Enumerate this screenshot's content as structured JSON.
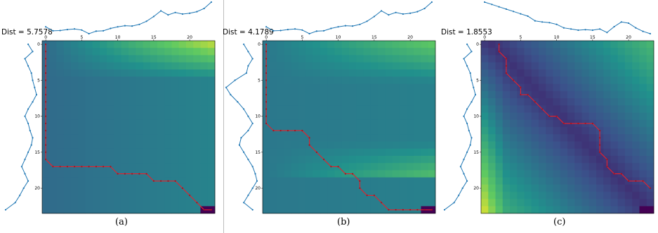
{
  "chart_data": [
    {
      "type": "heatmap",
      "caption": "(a)",
      "dist_label": "Dist = 5.7578",
      "grid_size": 24,
      "x_ticks": [
        0,
        5,
        10,
        15,
        20
      ],
      "y_ticks": [
        0,
        5,
        10,
        15,
        20
      ],
      "colormap": [
        "#440154",
        "#3b528b",
        "#21918c",
        "#5ec962",
        "#fde725"
      ],
      "grid": false,
      "path": [
        [
          0,
          0
        ],
        [
          0,
          1
        ],
        [
          0,
          2
        ],
        [
          0,
          3
        ],
        [
          0,
          4
        ],
        [
          0,
          5
        ],
        [
          0,
          6
        ],
        [
          0,
          7
        ],
        [
          0,
          8
        ],
        [
          0,
          9
        ],
        [
          0,
          10
        ],
        [
          0,
          11
        ],
        [
          0,
          12
        ],
        [
          0,
          13
        ],
        [
          0,
          14
        ],
        [
          0,
          15
        ],
        [
          0,
          16
        ],
        [
          1,
          17
        ],
        [
          2,
          17
        ],
        [
          3,
          17
        ],
        [
          4,
          17
        ],
        [
          5,
          17
        ],
        [
          6,
          17
        ],
        [
          7,
          17
        ],
        [
          8,
          17
        ],
        [
          9,
          17
        ],
        [
          10,
          18
        ],
        [
          11,
          18
        ],
        [
          12,
          18
        ],
        [
          13,
          18
        ],
        [
          14,
          18
        ],
        [
          15,
          19
        ],
        [
          16,
          19
        ],
        [
          17,
          19
        ],
        [
          18,
          19
        ],
        [
          19,
          20
        ],
        [
          20,
          21
        ],
        [
          21,
          22
        ],
        [
          22,
          23
        ],
        [
          23,
          23
        ]
      ],
      "top_series": [
        0.55,
        0.3,
        0.32,
        0.38,
        0.42,
        0.35,
        0.12,
        0.28,
        0.3,
        0.45,
        0.55,
        0.62,
        0.6,
        0.7,
        0.9,
        1.2,
        1.55,
        1.3,
        1.45,
        1.35,
        1.4,
        1.5,
        1.7,
        2.1
      ],
      "left_series": [
        0.55,
        0.62,
        0.5,
        0.55,
        0.6,
        0.62,
        0.65,
        0.68,
        0.62,
        0.55,
        0.5,
        0.55,
        0.58,
        0.62,
        0.6,
        0.55,
        0.5,
        0.45,
        0.5,
        0.55,
        0.48,
        0.42,
        0.35,
        0.2
      ]
    },
    {
      "type": "heatmap",
      "caption": "(b)",
      "dist_label": "Dist = 4.1789",
      "grid_size": 24,
      "x_ticks": [
        0,
        5,
        10,
        15,
        20
      ],
      "y_ticks": [
        0,
        5,
        10,
        15,
        20
      ],
      "colormap": [
        "#440154",
        "#3b528b",
        "#21918c",
        "#5ec962",
        "#fde725"
      ],
      "grid": false,
      "path": [
        [
          0,
          0
        ],
        [
          0,
          1
        ],
        [
          0,
          2
        ],
        [
          0,
          3
        ],
        [
          0,
          4
        ],
        [
          0,
          5
        ],
        [
          0,
          6
        ],
        [
          0,
          7
        ],
        [
          0,
          8
        ],
        [
          0,
          9
        ],
        [
          0,
          10
        ],
        [
          0,
          11
        ],
        [
          1,
          12
        ],
        [
          2,
          12
        ],
        [
          3,
          12
        ],
        [
          4,
          12
        ],
        [
          5,
          12
        ],
        [
          6,
          13
        ],
        [
          6,
          14
        ],
        [
          7,
          15
        ],
        [
          8,
          16
        ],
        [
          9,
          17
        ],
        [
          10,
          17
        ],
        [
          11,
          18
        ],
        [
          12,
          18
        ],
        [
          13,
          19
        ],
        [
          13,
          20
        ],
        [
          14,
          21
        ],
        [
          15,
          21
        ],
        [
          16,
          22
        ],
        [
          17,
          23
        ],
        [
          18,
          23
        ],
        [
          19,
          23
        ],
        [
          20,
          23
        ],
        [
          21,
          23
        ],
        [
          22,
          23
        ],
        [
          23,
          23
        ]
      ],
      "top_series": [
        0.55,
        0.3,
        0.32,
        0.38,
        0.42,
        0.35,
        0.12,
        0.28,
        0.3,
        0.45,
        0.55,
        0.62,
        0.6,
        0.7,
        0.9,
        1.2,
        1.55,
        1.3,
        1.45,
        1.35,
        1.4,
        1.5,
        1.7,
        2.1
      ],
      "left_series": [
        0.45,
        0.5,
        0.55,
        0.5,
        0.48,
        0.35,
        0.25,
        0.3,
        0.38,
        0.45,
        0.5,
        0.55,
        0.5,
        0.42,
        0.4,
        0.45,
        0.5,
        0.55,
        0.58,
        0.6,
        0.55,
        0.5,
        0.45,
        0.55
      ]
    },
    {
      "type": "heatmap",
      "caption": "(c)",
      "dist_label": "Dist = 1.8553",
      "grid_size": 24,
      "x_ticks": [
        0,
        5,
        10,
        15,
        20
      ],
      "y_ticks": [
        0,
        5,
        10,
        15,
        20
      ],
      "colormap": [
        "#440154",
        "#3b528b",
        "#21918c",
        "#5ec962",
        "#fde725"
      ],
      "grid": false,
      "path": [
        [
          2,
          0
        ],
        [
          2,
          1
        ],
        [
          3,
          2
        ],
        [
          3,
          3
        ],
        [
          3,
          4
        ],
        [
          4,
          5
        ],
        [
          5,
          6
        ],
        [
          5,
          7
        ],
        [
          6,
          7
        ],
        [
          7,
          8
        ],
        [
          8,
          9
        ],
        [
          9,
          10
        ],
        [
          10,
          10
        ],
        [
          11,
          11
        ],
        [
          12,
          11
        ],
        [
          13,
          11
        ],
        [
          14,
          11
        ],
        [
          15,
          11
        ],
        [
          16,
          12
        ],
        [
          16,
          13
        ],
        [
          16,
          14
        ],
        [
          16,
          15
        ],
        [
          17,
          16
        ],
        [
          17,
          17
        ],
        [
          18,
          18
        ],
        [
          19,
          18
        ],
        [
          20,
          19
        ],
        [
          21,
          19
        ],
        [
          22,
          19
        ],
        [
          23,
          20
        ]
      ],
      "top_series": [
        1.6,
        1.5,
        1.4,
        1.3,
        1.2,
        1.1,
        1.0,
        0.8,
        0.75,
        0.72,
        0.65,
        0.5,
        0.45,
        0.4,
        0.42,
        0.4,
        0.45,
        0.3,
        0.55,
        0.75,
        0.7,
        0.5,
        0.35,
        0.25
      ],
      "left_series": [
        0.55,
        0.62,
        0.5,
        0.55,
        0.6,
        0.62,
        0.65,
        0.68,
        0.62,
        0.55,
        0.5,
        0.55,
        0.58,
        0.62,
        0.6,
        0.55,
        0.5,
        0.45,
        0.5,
        0.55,
        0.48,
        0.42,
        0.35,
        0.2
      ]
    }
  ]
}
